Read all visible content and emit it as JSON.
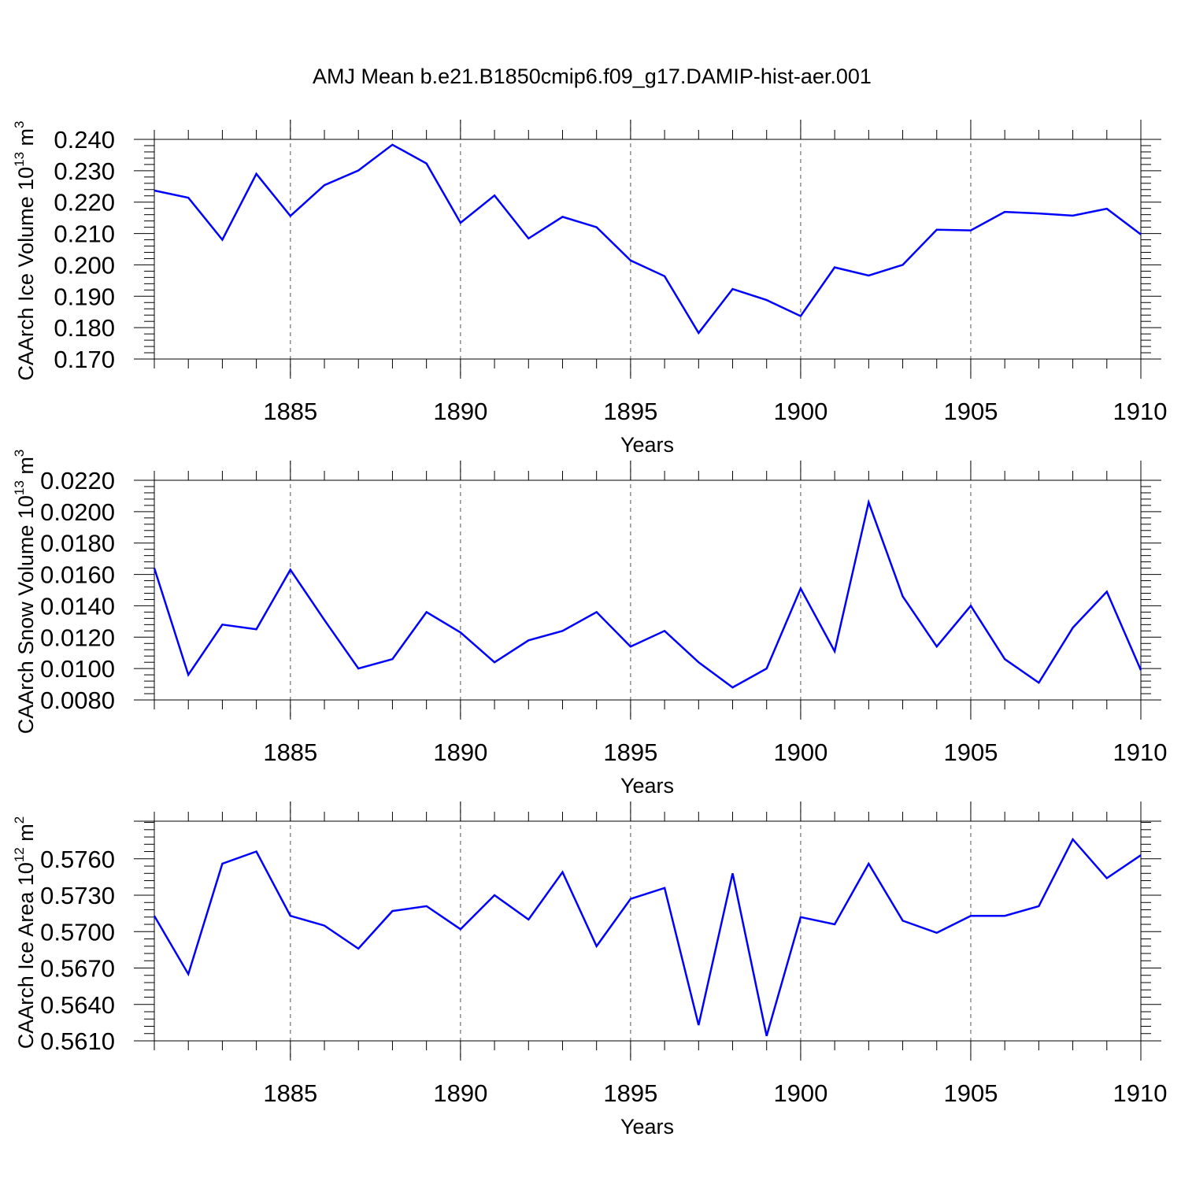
{
  "title": "AMJ Mean b.e21.B1850cmip6.f09_g17.DAMIP-hist-aer.001",
  "chart_data": [
    {
      "type": "line",
      "id": "ice-volume",
      "xlabel": "Years",
      "ylabel": "CAArch Ice Volume 10",
      "ylabel_exp": "13",
      "ylabel_unit": " m",
      "ylabel_unit_exp": "3",
      "xlim": [
        1881,
        1910
      ],
      "ylim": [
        0.17,
        0.24
      ],
      "xticks": [
        1885,
        1890,
        1895,
        1900,
        1905,
        1910
      ],
      "yticks": [
        "0.170",
        "0.180",
        "0.190",
        "0.200",
        "0.210",
        "0.220",
        "0.230",
        "0.240"
      ],
      "grid": "vertical dashed at major x ticks",
      "color": "#0000ff",
      "x": [
        1881,
        1882,
        1883,
        1884,
        1885,
        1886,
        1887,
        1888,
        1889,
        1890,
        1891,
        1892,
        1893,
        1894,
        1895,
        1896,
        1897,
        1898,
        1899,
        1900,
        1901,
        1902,
        1903,
        1904,
        1905,
        1906,
        1907,
        1908,
        1909,
        1910
      ],
      "values": [
        0.2237,
        0.2214,
        0.208,
        0.229,
        0.2156,
        0.2254,
        0.2301,
        0.2383,
        0.2323,
        0.2134,
        0.2221,
        0.2084,
        0.2153,
        0.212,
        0.2014,
        0.1964,
        0.1783,
        0.1923,
        0.1888,
        0.1837,
        0.1992,
        0.1966,
        0.2,
        0.2112,
        0.211,
        0.2169,
        0.2164,
        0.2157,
        0.2179,
        0.2097
      ]
    },
    {
      "type": "line",
      "id": "snow-volume",
      "xlabel": "Years",
      "ylabel": "CAArch Snow Volume 10",
      "ylabel_exp": "13",
      "ylabel_unit": " m",
      "ylabel_unit_exp": "3",
      "xlim": [
        1881,
        1910
      ],
      "ylim": [
        0.008,
        0.022
      ],
      "xticks": [
        1885,
        1890,
        1895,
        1900,
        1905,
        1910
      ],
      "yticks": [
        "0.0080",
        "0.0100",
        "0.0120",
        "0.0140",
        "0.0160",
        "0.0180",
        "0.0200",
        "0.0220"
      ],
      "grid": "vertical dashed at major x ticks",
      "color": "#0000ff",
      "x": [
        1881,
        1882,
        1883,
        1884,
        1885,
        1886,
        1887,
        1888,
        1889,
        1890,
        1891,
        1892,
        1893,
        1894,
        1895,
        1896,
        1897,
        1898,
        1899,
        1900,
        1901,
        1902,
        1903,
        1904,
        1905,
        1906,
        1907,
        1908,
        1909,
        1910
      ],
      "values": [
        0.0164,
        0.0096,
        0.0128,
        0.0125,
        0.0163,
        0.0131,
        0.01,
        0.0106,
        0.0136,
        0.0123,
        0.0104,
        0.0118,
        0.0124,
        0.0136,
        0.0114,
        0.0124,
        0.0104,
        0.0088,
        0.01,
        0.0151,
        0.0111,
        0.0206,
        0.0146,
        0.0114,
        0.014,
        0.0106,
        0.0091,
        0.0126,
        0.0149,
        0.0099
      ]
    },
    {
      "type": "line",
      "id": "ice-area",
      "xlabel": "Years",
      "ylabel": "CAArch Ice Area 10",
      "ylabel_exp": "12",
      "ylabel_unit": " m",
      "ylabel_unit_exp": "2",
      "xlim": [
        1881,
        1910
      ],
      "ylim": [
        0.561,
        0.5791
      ],
      "xticks": [
        1885,
        1890,
        1895,
        1900,
        1905,
        1910
      ],
      "yticks": [
        "0.5610",
        "0.5640",
        "0.5670",
        "0.5700",
        "0.5730",
        "0.5760"
      ],
      "grid": "vertical dashed at major x ticks",
      "color": "#0000ff",
      "x": [
        1881,
        1882,
        1883,
        1884,
        1885,
        1886,
        1887,
        1888,
        1889,
        1890,
        1891,
        1892,
        1893,
        1894,
        1895,
        1896,
        1897,
        1898,
        1899,
        1900,
        1901,
        1902,
        1903,
        1904,
        1905,
        1906,
        1907,
        1908,
        1909,
        1910
      ],
      "values": [
        0.5713,
        0.5665,
        0.5756,
        0.5766,
        0.5713,
        0.5705,
        0.5686,
        0.5717,
        0.5721,
        0.5702,
        0.573,
        0.571,
        0.5749,
        0.5688,
        0.5727,
        0.5736,
        0.5623,
        0.5748,
        0.5614,
        0.5712,
        0.5706,
        0.5756,
        0.5709,
        0.5699,
        0.5713,
        0.5713,
        0.5721,
        0.5776,
        0.5744,
        0.5763
      ]
    }
  ]
}
